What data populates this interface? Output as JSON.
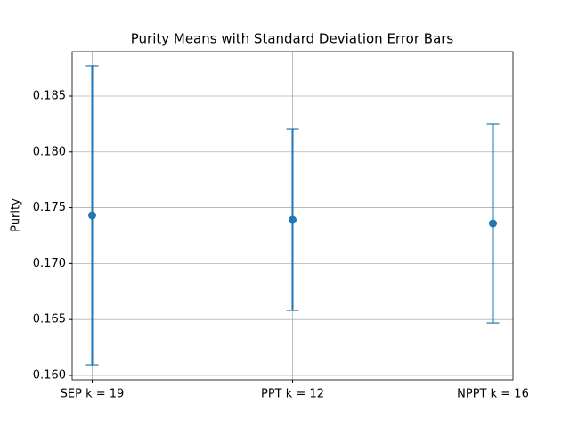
{
  "chart_data": {
    "type": "errorbar",
    "title": "Purity Means with Standard Deviation Error Bars",
    "y_label": "Purity",
    "categories": [
      "SEP k = 19",
      "PPT k = 12",
      "NPPT k = 16"
    ],
    "values": [
      0.17433,
      0.17393,
      0.17361
    ],
    "errors": [
      0.01338,
      0.00812,
      0.00892
    ],
    "color": "#1f77b4",
    "ylim": [
      0.1596,
      0.18898
    ],
    "yticks": [
      {
        "value": 0.16,
        "label": "0.160"
      },
      {
        "value": 0.165,
        "label": "0.165"
      },
      {
        "value": 0.17,
        "label": "0.170"
      },
      {
        "value": 0.175,
        "label": "0.175"
      },
      {
        "value": 0.18,
        "label": "0.180"
      },
      {
        "value": 0.185,
        "label": "0.185"
      }
    ],
    "grid": true
  }
}
